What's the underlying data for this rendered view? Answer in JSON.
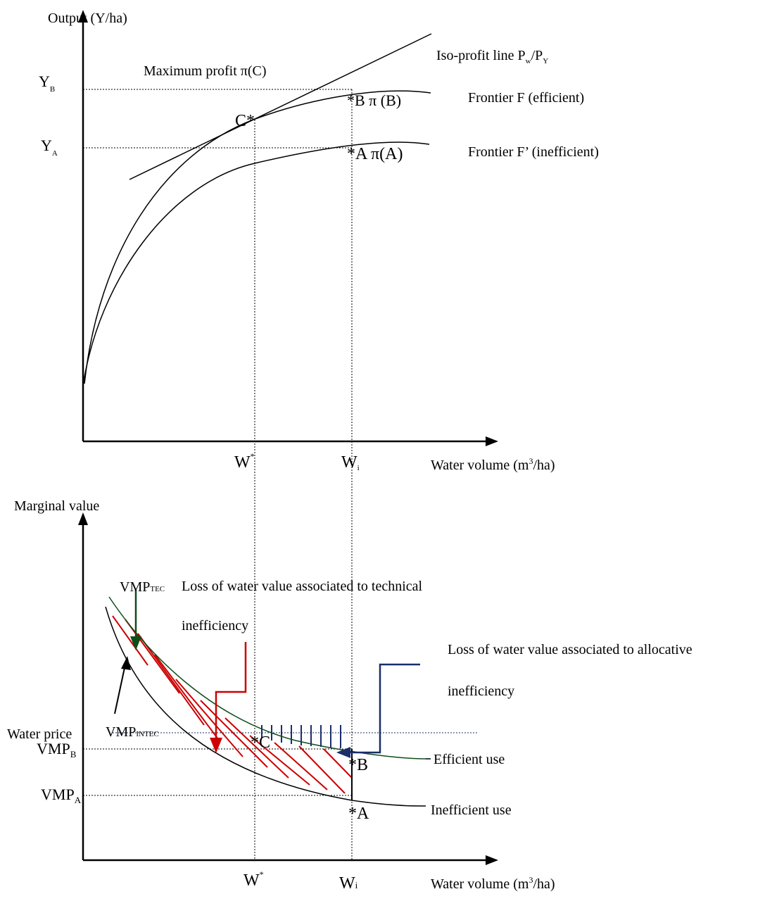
{
  "top_panel": {
    "y_axis_label": "Output  (Y/ha)",
    "x_axis_label_prefix": "Water volume (m",
    "x_axis_label_sup": "3",
    "x_axis_label_suffix": "/ha)",
    "y_ticks": {
      "yb_main": "Y",
      "yb_sub": "B",
      "ya_main": "Y",
      "ya_sub": "A"
    },
    "x_ticks": {
      "wstar_main": "W",
      "wstar_sup": "*",
      "wi_main": "W",
      "wi_sub": "i"
    },
    "isoprofit_label": {
      "prefix": "Iso-profit line P",
      "sub1": "w",
      "mid": "/P",
      "sub2": "Y"
    },
    "max_profit_label": "Maximum profit π(C)",
    "point_c_label": "C*",
    "point_b_label": "*B  π (B)",
    "point_a_label": "*A  π(A)",
    "frontier_f_label": "Frontier F (efficient)",
    "frontier_f_prime_label": "Frontier F’ (inefficient)"
  },
  "bottom_panel": {
    "y_axis_label": "Marginal value",
    "x_axis_label_prefix": "Water volume (m",
    "x_axis_label_sup": "3",
    "x_axis_label_suffix": "/ha)",
    "x_ticks": {
      "wstar_main": "W",
      "wstar_sup": "*",
      "wi_main": "W",
      "wi_sub": "i"
    },
    "water_price_label": "Water price",
    "vmp_b": {
      "main": "VMP",
      "sub": "B"
    },
    "vmp_a": {
      "main": "VMP",
      "sub": "A"
    },
    "vmp_tec": {
      "main": "VMP",
      "sub": "TEC"
    },
    "vmp_intec": {
      "main": "VMP",
      "sub": "INTEC"
    },
    "technical_loss_line1": "Loss of water value associated to technical",
    "technical_loss_line2": "inefficiency",
    "allocative_loss_line1": "Loss of water value associated to allocative",
    "allocative_loss_line2": "inefficiency",
    "efficient_use_label": "Efficient use",
    "inefficient_use_label": "Inefficient use",
    "point_c_label": "*C",
    "point_b_label": "*B",
    "point_a_label": "*A"
  },
  "colors": {
    "technical_loss": "#cc0000",
    "allocative_loss": "#1a2e6b",
    "efficient_curve": "#0f4d1a",
    "axis": "#000000"
  }
}
